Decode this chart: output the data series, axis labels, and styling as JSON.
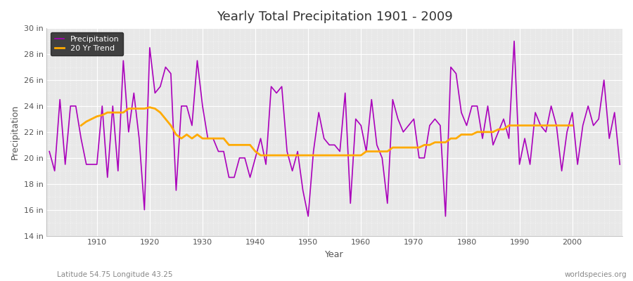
{
  "title": "Yearly Total Precipitation 1901 - 2009",
  "xlabel": "Year",
  "ylabel": "Precipitation",
  "subtitle_left": "Latitude 54.75 Longitude 43.25",
  "subtitle_right": "worldspecies.org",
  "ylim": [
    14,
    30
  ],
  "yticks": [
    14,
    16,
    18,
    20,
    22,
    24,
    26,
    28,
    30
  ],
  "ytick_labels": [
    "14 in",
    "16 in",
    "18 in",
    "20 in",
    "22 in",
    "24 in",
    "26 in",
    "28 in",
    "30 in"
  ],
  "xticks": [
    1910,
    1920,
    1930,
    1940,
    1950,
    1960,
    1970,
    1980,
    1990,
    2000
  ],
  "background_color": "#ffffff",
  "plot_bg_color": "#e8e8e8",
  "grid_color": "#ffffff",
  "precip_color": "#aa00bb",
  "trend_color": "#ffaa00",
  "legend_precip": "Precipitation",
  "legend_trend": "20 Yr Trend",
  "legend_bg": "#222222",
  "legend_text": "#ffffff",
  "years": [
    1901,
    1902,
    1903,
    1904,
    1905,
    1906,
    1907,
    1908,
    1909,
    1910,
    1911,
    1912,
    1913,
    1914,
    1915,
    1916,
    1917,
    1918,
    1919,
    1920,
    1921,
    1922,
    1923,
    1924,
    1925,
    1926,
    1927,
    1928,
    1929,
    1930,
    1931,
    1932,
    1933,
    1934,
    1935,
    1936,
    1937,
    1938,
    1939,
    1940,
    1941,
    1942,
    1943,
    1944,
    1945,
    1946,
    1947,
    1948,
    1949,
    1950,
    1951,
    1952,
    1953,
    1954,
    1955,
    1956,
    1957,
    1958,
    1959,
    1960,
    1961,
    1962,
    1963,
    1964,
    1965,
    1966,
    1967,
    1968,
    1969,
    1970,
    1971,
    1972,
    1973,
    1974,
    1975,
    1976,
    1977,
    1978,
    1979,
    1980,
    1981,
    1982,
    1983,
    1984,
    1985,
    1986,
    1987,
    1988,
    1989,
    1990,
    1991,
    1992,
    1993,
    1994,
    1995,
    1996,
    1997,
    1998,
    1999,
    2000,
    2001,
    2002,
    2003,
    2004,
    2005,
    2006,
    2007,
    2008,
    2009
  ],
  "precip": [
    20.5,
    19.0,
    24.5,
    19.5,
    24.0,
    24.0,
    21.5,
    19.5,
    19.5,
    19.5,
    24.0,
    18.5,
    24.0,
    19.0,
    27.5,
    22.0,
    25.0,
    21.5,
    16.0,
    28.5,
    25.0,
    25.5,
    27.0,
    26.5,
    17.5,
    24.0,
    24.0,
    22.5,
    27.5,
    24.0,
    21.5,
    21.5,
    20.5,
    20.5,
    18.5,
    18.5,
    20.0,
    20.0,
    18.5,
    20.0,
    21.5,
    19.5,
    25.5,
    25.0,
    25.5,
    20.5,
    19.0,
    20.5,
    17.5,
    15.5,
    20.5,
    23.5,
    21.5,
    21.0,
    21.0,
    20.5,
    25.0,
    16.5,
    23.0,
    22.5,
    20.5,
    24.5,
    21.0,
    20.0,
    16.5,
    24.5,
    23.0,
    22.0,
    22.5,
    23.0,
    20.0,
    20.0,
    22.5,
    23.0,
    22.5,
    15.5,
    27.0,
    26.5,
    23.5,
    22.5,
    24.0,
    24.0,
    21.5,
    24.0,
    21.0,
    22.0,
    23.0,
    21.5,
    29.0,
    19.5,
    21.5,
    19.5,
    23.5,
    22.5,
    22.0,
    24.0,
    22.5,
    19.0,
    22.0,
    23.5,
    19.5,
    22.5,
    24.0,
    22.5,
    23.0,
    26.0,
    21.5,
    23.5,
    19.5
  ],
  "trend_years": [
    1907,
    1908,
    1909,
    1910,
    1911,
    1912,
    1913,
    1914,
    1915,
    1916,
    1917,
    1918,
    1919,
    1920,
    1921,
    1922,
    1923,
    1924,
    1925,
    1926,
    1927,
    1928,
    1929,
    1930,
    1931,
    1932,
    1933,
    1934,
    1935,
    1936,
    1937,
    1938,
    1939,
    1940,
    1941,
    1942,
    1943,
    1944,
    1945,
    1946,
    1947,
    1948,
    1949,
    1950,
    1951,
    1952,
    1953,
    1954,
    1955,
    1956,
    1957,
    1958,
    1959,
    1960,
    1961,
    1962,
    1963,
    1964,
    1965,
    1966,
    1967,
    1968,
    1969,
    1970,
    1971,
    1972,
    1973,
    1974,
    1975,
    1976,
    1977,
    1978,
    1979,
    1980,
    1981,
    1982,
    1983,
    1984,
    1985,
    1986,
    1987,
    1988,
    1989,
    1990,
    1991,
    1992,
    1993,
    1994,
    1995,
    1996,
    1997,
    1998,
    1999,
    2000
  ],
  "trend": [
    22.5,
    22.8,
    23.0,
    23.2,
    23.3,
    23.5,
    23.5,
    23.5,
    23.5,
    23.8,
    23.8,
    23.8,
    23.8,
    23.9,
    23.8,
    23.5,
    23.0,
    22.5,
    21.8,
    21.5,
    21.8,
    21.5,
    21.8,
    21.5,
    21.5,
    21.5,
    21.5,
    21.5,
    21.0,
    21.0,
    21.0,
    21.0,
    21.0,
    20.5,
    20.2,
    20.2,
    20.2,
    20.2,
    20.2,
    20.2,
    20.2,
    20.2,
    20.2,
    20.2,
    20.2,
    20.2,
    20.2,
    20.2,
    20.2,
    20.2,
    20.2,
    20.2,
    20.2,
    20.2,
    20.5,
    20.5,
    20.5,
    20.5,
    20.5,
    20.8,
    20.8,
    20.8,
    20.8,
    20.8,
    20.8,
    21.0,
    21.0,
    21.2,
    21.2,
    21.2,
    21.5,
    21.5,
    21.8,
    21.8,
    21.8,
    22.0,
    22.0,
    22.0,
    22.0,
    22.2,
    22.2,
    22.5,
    22.5,
    22.5,
    22.5,
    22.5,
    22.5,
    22.5,
    22.5,
    22.5,
    22.5,
    22.5,
    22.5,
    22.5
  ]
}
